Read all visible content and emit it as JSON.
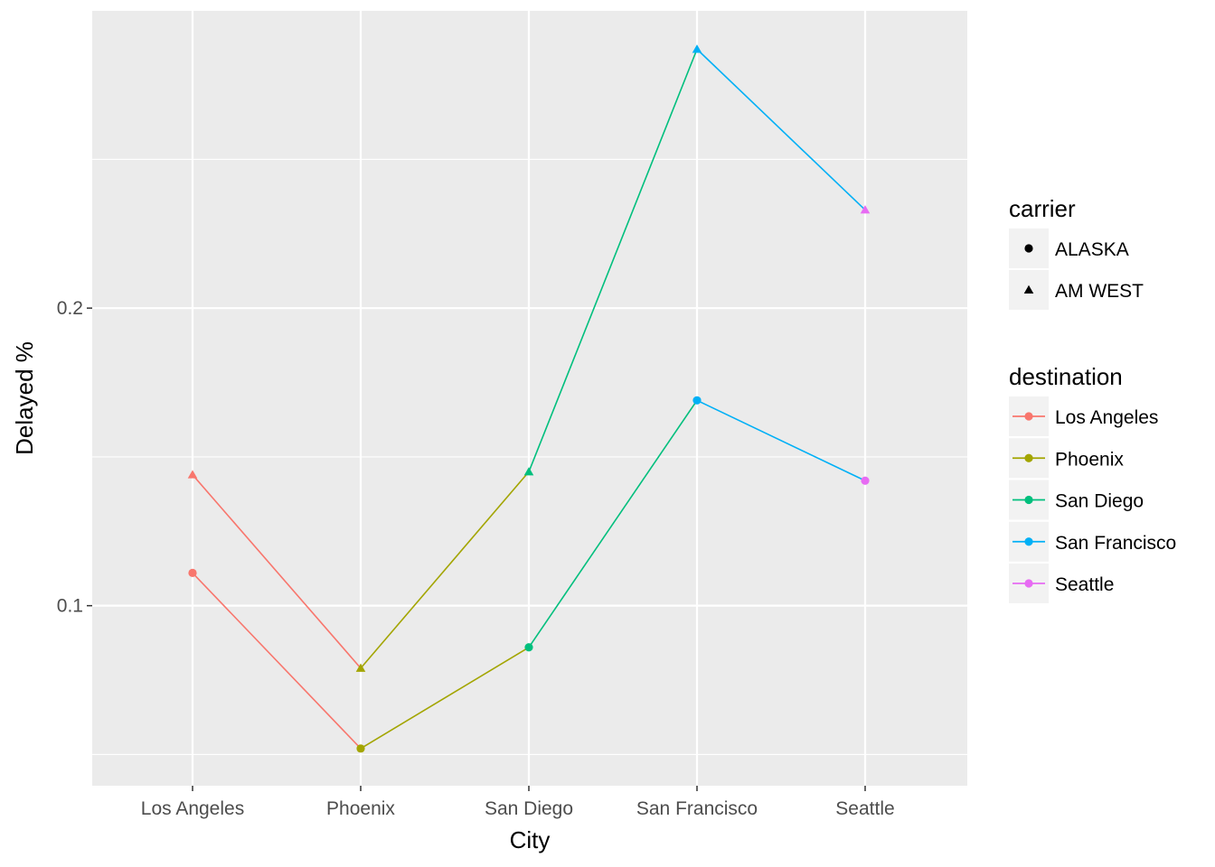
{
  "chart_data": {
    "type": "line",
    "xlabel": "City",
    "ylabel": "Delayed %",
    "categories": [
      "Los Angeles",
      "Phoenix",
      "San Diego",
      "San Francisco",
      "Seattle"
    ],
    "yticks": [
      0.1,
      0.2
    ],
    "yticks_labels": [
      "0.1",
      "0.2"
    ],
    "ylim": [
      0.0395,
      0.2999
    ],
    "grid": true,
    "series": [
      {
        "carrier": "ALASKA",
        "values": [
          0.111,
          0.052,
          0.086,
          0.169,
          0.142
        ],
        "point_colors": [
          "#F8766D",
          "#A3A500",
          "#00BF7D",
          "#00B0F6",
          "#E76BF3"
        ]
      },
      {
        "carrier": "AM WEST",
        "values": [
          0.144,
          0.079,
          0.145,
          0.287,
          0.233
        ],
        "point_colors": [
          "#F8766D",
          "#A3A500",
          "#00BF7D",
          "#00B0F6",
          "#E76BF3"
        ]
      }
    ],
    "legend": {
      "placement": "right",
      "carrier": {
        "title": "carrier",
        "entries": [
          {
            "label": "ALASKA",
            "shape": "circle"
          },
          {
            "label": "AM WEST",
            "shape": "triangle"
          }
        ]
      },
      "destination": {
        "title": "destination",
        "entries": [
          {
            "label": "Los Angeles",
            "color": "#F8766D"
          },
          {
            "label": "Phoenix",
            "color": "#A3A500"
          },
          {
            "label": "San Diego",
            "color": "#00BF7D"
          },
          {
            "label": "San Francisco",
            "color": "#00B0F6"
          },
          {
            "label": "Seattle",
            "color": "#E76BF3"
          }
        ]
      }
    }
  }
}
